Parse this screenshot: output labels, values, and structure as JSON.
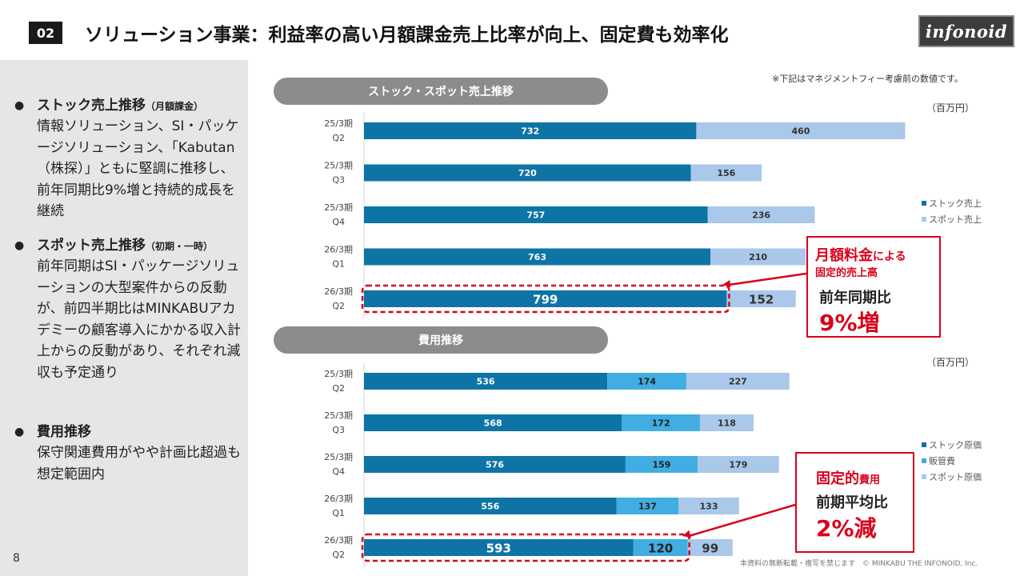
{
  "header": {
    "section_number": "02",
    "title": "ソリューション事業：利益率の高い月額課金売上比率が向上、固定費も効率化",
    "logo_text": "infonoid"
  },
  "left_panel": {
    "bullets": [
      {
        "head": "ストック売上推移",
        "head_note": "（月額課金）",
        "body": "情報ソリューション、SI・パッケージソリューション、「Kabutan（株探）」ともに堅調に推移し、前年同期比9%増と持続的成長を継続"
      },
      {
        "head": "スポット売上推移",
        "head_note": "（初期・一時）",
        "body": "前年同期はSI・パッケージソリューションの大型案件からの反動が、前四半期比はMINKABUアカデミーの顧客導入にかかる収入計上からの反動があり、それぞれ減収も予定通り"
      },
      {
        "head": "費用推移",
        "head_note": "",
        "body": "保守関連費用がやや計画比超過も想定範囲内"
      }
    ],
    "page_number": "8"
  },
  "note": "※下記はマネジメントフィー考慮前の数値です。",
  "footer": "本資料の無断転載・複写を禁じます　© MINKABU THE INFONOID, Inc.",
  "colors": {
    "stock": "#0e74a6",
    "sga": "#41ade2",
    "spot": "#a9c8ea",
    "highlight": "#d9001b",
    "pill": "#8c8c8c"
  },
  "chart_data": [
    {
      "type": "bar",
      "orientation": "horizontal",
      "stacked": true,
      "title": "ストック・スポット売上推移",
      "unit": "（百万円）",
      "categories": [
        [
          "25/3期",
          "Q2"
        ],
        [
          "25/3期",
          "Q3"
        ],
        [
          "25/3期",
          "Q4"
        ],
        [
          "26/3期",
          "Q1"
        ],
        [
          "26/3期",
          "Q2"
        ]
      ],
      "series": [
        {
          "name": "ストック売上",
          "values": [
            732,
            720,
            757,
            763,
            799
          ]
        },
        {
          "name": "スポット売上",
          "values": [
            460,
            156,
            236,
            210,
            152
          ]
        }
      ],
      "legend_position": "right",
      "highlight_category": 4,
      "callout": {
        "line1": "月額料金",
        "line1_small": "による",
        "line2": "固定的売上高",
        "line3": "前年同期比",
        "line4": "9%増"
      }
    },
    {
      "type": "bar",
      "orientation": "horizontal",
      "stacked": true,
      "title": "費用推移",
      "unit": "（百万円）",
      "categories": [
        [
          "25/3期",
          "Q2"
        ],
        [
          "25/3期",
          "Q3"
        ],
        [
          "25/3期",
          "Q4"
        ],
        [
          "26/3期",
          "Q1"
        ],
        [
          "26/3期",
          "Q2"
        ]
      ],
      "series": [
        {
          "name": "ストック原価",
          "values": [
            536,
            568,
            576,
            556,
            593
          ]
        },
        {
          "name": "販管費",
          "values": [
            174,
            172,
            159,
            137,
            120
          ]
        },
        {
          "name": "スポット原価",
          "values": [
            227,
            118,
            179,
            133,
            99
          ]
        }
      ],
      "legend_position": "right",
      "highlight_category": 4,
      "callout": {
        "line1": "固定的",
        "line1_small": "費用",
        "line2": "前期平均比",
        "line3": "2%減"
      }
    }
  ]
}
